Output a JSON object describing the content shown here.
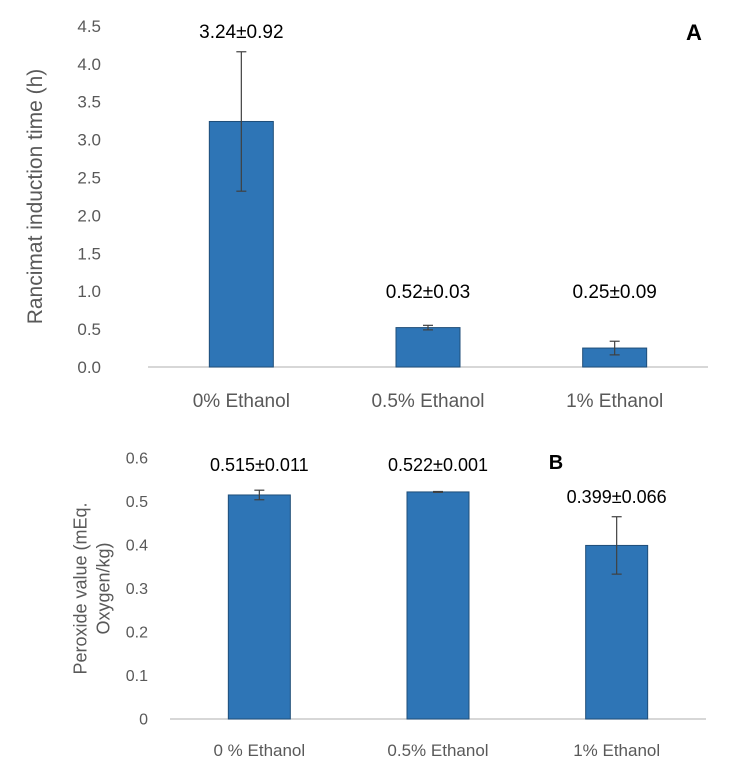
{
  "colors": {
    "bar_fill": "#2e75b6",
    "bar_stroke": "#1f4e79",
    "error_bar": "#404040",
    "axis_text": "#595959",
    "axis_line": "#bfbfbf"
  },
  "chart_data": [
    {
      "type": "bar",
      "panel_label": "A",
      "title": "",
      "xlabel": "",
      "ylabel": "Rancimat induction time (h)",
      "categories": [
        "0% Ethanol",
        "0.5% Ethanol",
        "1% Ethanol"
      ],
      "values": [
        3.24,
        0.52,
        0.25
      ],
      "errors": [
        0.92,
        0.03,
        0.09
      ],
      "data_labels": [
        "3.24±0.92",
        "0.52±0.03",
        "0.25±0.09"
      ],
      "ylim": [
        0,
        4.5
      ],
      "yticks": [
        "0.0",
        "0.5",
        "1.0",
        "1.5",
        "2.0",
        "2.5",
        "3.0",
        "3.5",
        "4.0",
        "4.5"
      ],
      "grid": false
    },
    {
      "type": "bar",
      "panel_label": "B",
      "title": "",
      "xlabel": "",
      "ylabel": "Peroxide value (mEq. Oxygen/kg)",
      "ylabel_lines": [
        "Peroxide value (mEq.",
        "Oxygen/kg)"
      ],
      "categories": [
        "0 % Ethanol",
        "0.5% Ethanol",
        "1% Ethanol"
      ],
      "values": [
        0.515,
        0.522,
        0.399
      ],
      "errors": [
        0.011,
        0.001,
        0.066
      ],
      "data_labels": [
        "0.515±0.011",
        "0.522±0.001",
        "0.399±0.066"
      ],
      "ylim": [
        0,
        0.6
      ],
      "yticks": [
        "0",
        "0.1",
        "0.2",
        "0.3",
        "0.4",
        "0.5",
        "0.6"
      ],
      "grid": false
    }
  ]
}
